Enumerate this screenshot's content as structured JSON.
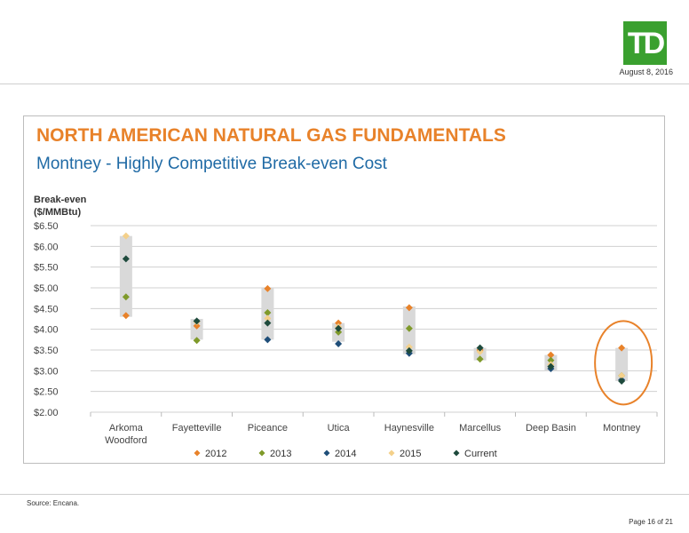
{
  "header": {
    "logo_text": "TD",
    "date": "August 8, 2016"
  },
  "slide": {
    "title": "NORTH AMERICAN NATURAL GAS FUNDAMENTALS",
    "subtitle": "Montney - Highly Competitive Break-even Cost"
  },
  "footer": {
    "source": "Source: Encana.",
    "page": "Page 16 of 21"
  },
  "colors": {
    "2012": "#e8822a",
    "2013": "#7f9a2a",
    "2014": "#1f4e79",
    "2015": "#f4d08a",
    "Current": "#1e4a3c",
    "range_bar": "#d9d9d9",
    "highlight_circle": "#e8822a"
  },
  "chart_data": {
    "type": "scatter",
    "ylabel": [
      "Break-even",
      "($/MMBtu)"
    ],
    "ylim": [
      2.0,
      6.5
    ],
    "y_ticks": [
      "$2.00",
      "$2.50",
      "$3.00",
      "$3.50",
      "$4.00",
      "$4.50",
      "$5.00",
      "$5.50",
      "$6.00",
      "$6.50"
    ],
    "grid": true,
    "legend_position": "bottom",
    "categories": [
      "Arkoma Woodford",
      "Fayetteville",
      "Piceance",
      "Utica",
      "Haynesville",
      "Marcellus",
      "Deep Basin",
      "Montney"
    ],
    "category_labels": [
      [
        "Arkoma",
        "Woodford"
      ],
      [
        "Fayetteville"
      ],
      [
        "Piceance"
      ],
      [
        "Utica"
      ],
      [
        "Haynesville"
      ],
      [
        "Marcellus"
      ],
      [
        "Deep Basin"
      ],
      [
        "Montney"
      ]
    ],
    "series": [
      {
        "name": "2012",
        "values": [
          4.33,
          4.08,
          4.98,
          4.15,
          4.52,
          3.5,
          3.38,
          3.55
        ]
      },
      {
        "name": "2013",
        "values": [
          4.78,
          3.73,
          4.4,
          3.93,
          4.02,
          3.28,
          3.25,
          2.88
        ]
      },
      {
        "name": "2014",
        "values": [
          null,
          null,
          3.75,
          3.65,
          3.42,
          null,
          3.05,
          2.78
        ]
      },
      {
        "name": "2015",
        "values": [
          6.25,
          4.18,
          4.26,
          4.06,
          3.57,
          3.46,
          3.15,
          2.88
        ]
      },
      {
        "name": "Current",
        "values": [
          5.7,
          4.2,
          4.15,
          4.02,
          3.48,
          3.55,
          3.1,
          2.75
        ]
      }
    ],
    "ranges": [
      [
        4.3,
        6.25
      ],
      [
        3.75,
        4.25
      ],
      [
        3.75,
        5.0
      ],
      [
        3.7,
        4.15
      ],
      [
        3.4,
        4.55
      ],
      [
        3.25,
        3.55
      ],
      [
        3.0,
        3.38
      ],
      [
        2.75,
        3.55
      ]
    ],
    "highlighted_category": "Montney"
  }
}
